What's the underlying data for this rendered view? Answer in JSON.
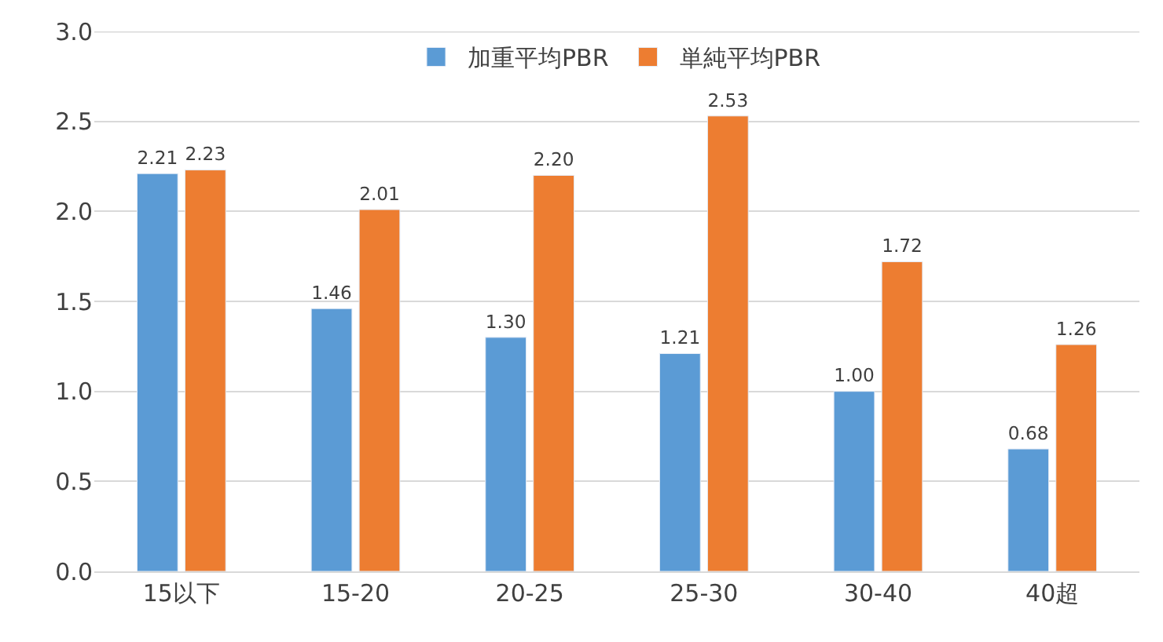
{
  "chart_data": {
    "type": "bar",
    "categories": [
      "15以下",
      "15-20",
      "20-25",
      "25-30",
      "30-40",
      "40超"
    ],
    "series": [
      {
        "name": "加重平均PBR",
        "color": "#5b9bd5",
        "values": [
          2.21,
          1.46,
          1.3,
          1.21,
          1.0,
          0.68
        ],
        "value_labels": [
          "2.21",
          "1.46",
          "1.30",
          "1.21",
          "1.00",
          "0.68"
        ]
      },
      {
        "name": "単純平均PBR",
        "color": "#ed7d31",
        "values": [
          2.23,
          2.01,
          2.2,
          2.53,
          1.72,
          1.26
        ],
        "value_labels": [
          "2.23",
          "2.01",
          "2.20",
          "2.53",
          "1.72",
          "1.26"
        ]
      }
    ],
    "ylim": [
      0,
      3
    ],
    "yticks": [
      "0.0",
      "0.5",
      "1.0",
      "1.5",
      "2.0",
      "2.5",
      "3.0"
    ],
    "grid": "y",
    "legend": "top"
  }
}
